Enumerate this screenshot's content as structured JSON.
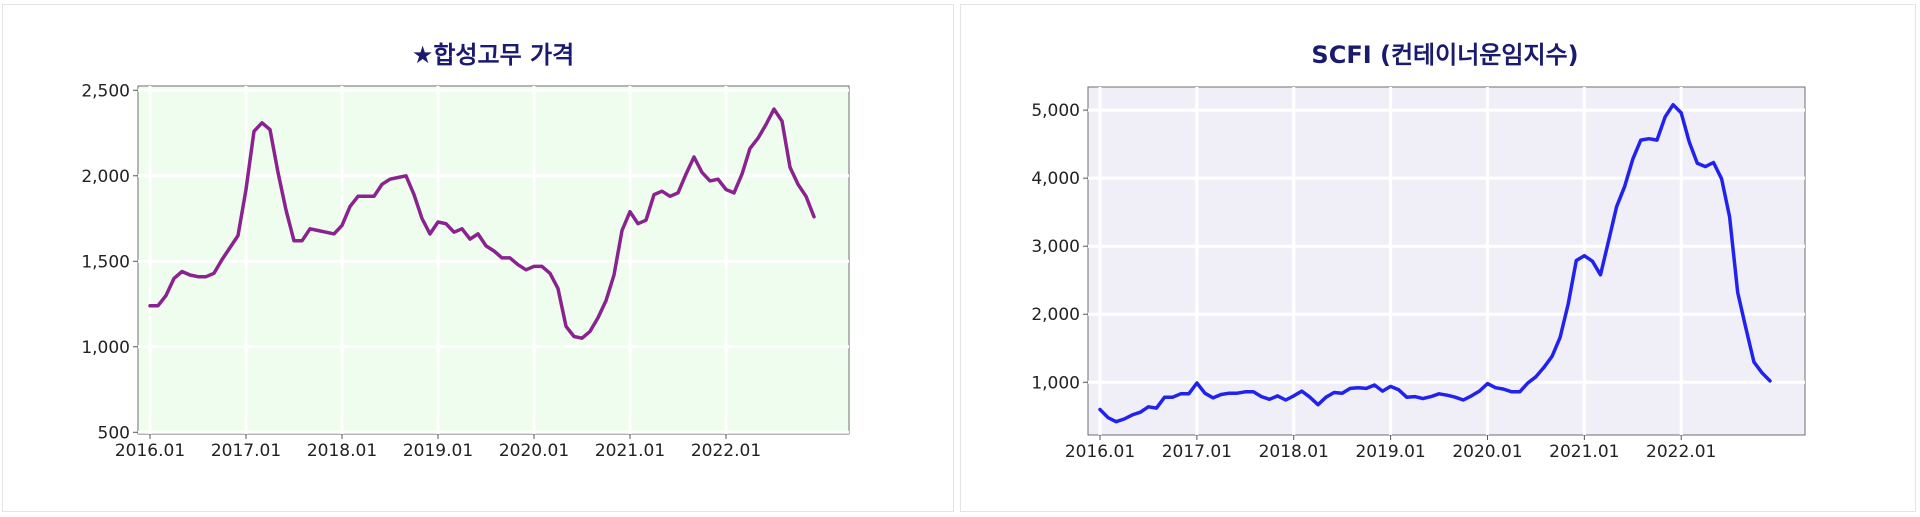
{
  "charts": [
    {
      "type": "line",
      "title": "★합성고무 가격",
      "x": [
        "2016.01",
        "2016.02",
        "2016.03",
        "2016.04",
        "2016.05",
        "2016.06",
        "2016.07",
        "2016.08",
        "2016.09",
        "2016.10",
        "2016.11",
        "2016.12",
        "2017.01",
        "2017.02",
        "2017.03",
        "2017.04",
        "2017.05",
        "2017.06",
        "2017.07",
        "2017.08",
        "2017.09",
        "2017.10",
        "2017.11",
        "2017.12",
        "2018.01",
        "2018.02",
        "2018.03",
        "2018.04",
        "2018.05",
        "2018.06",
        "2018.07",
        "2018.08",
        "2018.09",
        "2018.10",
        "2018.11",
        "2018.12",
        "2019.01",
        "2019.02",
        "2019.03",
        "2019.04",
        "2019.05",
        "2019.06",
        "2019.07",
        "2019.08",
        "2019.09",
        "2019.10",
        "2019.11",
        "2019.12",
        "2020.01",
        "2020.02",
        "2020.03",
        "2020.04",
        "2020.05",
        "2020.06",
        "2020.07",
        "2020.08",
        "2020.09",
        "2020.10",
        "2020.11",
        "2020.12",
        "2021.01",
        "2021.02",
        "2021.03",
        "2021.04",
        "2021.05",
        "2021.06",
        "2021.07",
        "2021.08",
        "2021.09",
        "2021.10",
        "2021.11",
        "2021.12",
        "2022.01",
        "2022.02",
        "2022.03",
        "2022.04",
        "2022.05",
        "2022.06",
        "2022.07",
        "2022.08",
        "2022.09",
        "2022.10",
        "2022.11",
        "2022.12"
      ],
      "values": [
        1240,
        1240,
        1300,
        1400,
        1440,
        1420,
        1410,
        1410,
        1430,
        1510,
        1580,
        1650,
        1920,
        2260,
        2310,
        2270,
        2020,
        1800,
        1620,
        1620,
        1690,
        1680,
        1670,
        1660,
        1710,
        1820,
        1880,
        1880,
        1880,
        1950,
        1980,
        1990,
        2000,
        1890,
        1750,
        1660,
        1730,
        1720,
        1670,
        1690,
        1630,
        1660,
        1590,
        1560,
        1520,
        1520,
        1480,
        1450,
        1470,
        1470,
        1430,
        1340,
        1120,
        1060,
        1050,
        1090,
        1170,
        1270,
        1420,
        1680,
        1790,
        1720,
        1740,
        1890,
        1910,
        1880,
        1900,
        2010,
        2110,
        2020,
        1970,
        1980,
        1920,
        1900,
        2010,
        2160,
        2220,
        2300,
        2390,
        2320,
        2050,
        1950,
        1880,
        1760
      ],
      "xticks": [
        "2016.01",
        "2017.01",
        "2018.01",
        "2019.01",
        "2020.01",
        "2021.01",
        "2022.01"
      ],
      "yticks": [
        500,
        1000,
        1500,
        2000,
        2500
      ],
      "ylim": [
        490,
        2525
      ],
      "line_color": "#8a2290",
      "plot_bg": "#effdee",
      "grid": true
    },
    {
      "type": "line",
      "title": "SCFI (컨테이너운임지수)",
      "x": [
        "2016.01",
        "2016.02",
        "2016.03",
        "2016.04",
        "2016.05",
        "2016.06",
        "2016.07",
        "2016.08",
        "2016.09",
        "2016.10",
        "2016.11",
        "2016.12",
        "2017.01",
        "2017.02",
        "2017.03",
        "2017.04",
        "2017.05",
        "2017.06",
        "2017.07",
        "2017.08",
        "2017.09",
        "2017.10",
        "2017.11",
        "2017.12",
        "2018.01",
        "2018.02",
        "2018.03",
        "2018.04",
        "2018.05",
        "2018.06",
        "2018.07",
        "2018.08",
        "2018.09",
        "2018.10",
        "2018.11",
        "2018.12",
        "2019.01",
        "2019.02",
        "2019.03",
        "2019.04",
        "2019.05",
        "2019.06",
        "2019.07",
        "2019.08",
        "2019.09",
        "2019.10",
        "2019.11",
        "2019.12",
        "2020.01",
        "2020.02",
        "2020.03",
        "2020.04",
        "2020.05",
        "2020.06",
        "2020.07",
        "2020.08",
        "2020.09",
        "2020.10",
        "2020.11",
        "2020.12",
        "2021.01",
        "2021.02",
        "2021.03",
        "2021.04",
        "2021.05",
        "2021.06",
        "2021.07",
        "2021.08",
        "2021.09",
        "2021.10",
        "2021.11",
        "2021.12",
        "2022.01",
        "2022.02",
        "2022.03",
        "2022.04",
        "2022.05",
        "2022.06",
        "2022.07",
        "2022.08",
        "2022.09",
        "2022.10",
        "2022.11",
        "2022.12"
      ],
      "values": [
        600,
        480,
        420,
        460,
        520,
        560,
        640,
        620,
        780,
        780,
        830,
        830,
        990,
        840,
        770,
        820,
        840,
        840,
        860,
        860,
        790,
        750,
        800,
        740,
        800,
        870,
        780,
        670,
        780,
        850,
        840,
        910,
        920,
        910,
        960,
        870,
        940,
        890,
        780,
        790,
        760,
        790,
        830,
        810,
        780,
        740,
        800,
        870,
        980,
        920,
        900,
        860,
        860,
        990,
        1080,
        1220,
        1380,
        1660,
        2150,
        2790,
        2860,
        2780,
        2580,
        3080,
        3580,
        3880,
        4280,
        4560,
        4580,
        4560,
        4900,
        5080,
        4960,
        4530,
        4220,
        4170,
        4230,
        3990,
        3430,
        2320,
        1800,
        1300,
        1140,
        1020
      ],
      "xticks": [
        "2016.01",
        "2017.01",
        "2018.01",
        "2019.01",
        "2020.01",
        "2021.01",
        "2022.01"
      ],
      "yticks": [
        1000,
        2000,
        3000,
        4000,
        5000
      ],
      "ylim": [
        225,
        5340
      ],
      "line_color": "#2222ee",
      "plot_bg": "#f0eff8",
      "grid": true
    }
  ]
}
